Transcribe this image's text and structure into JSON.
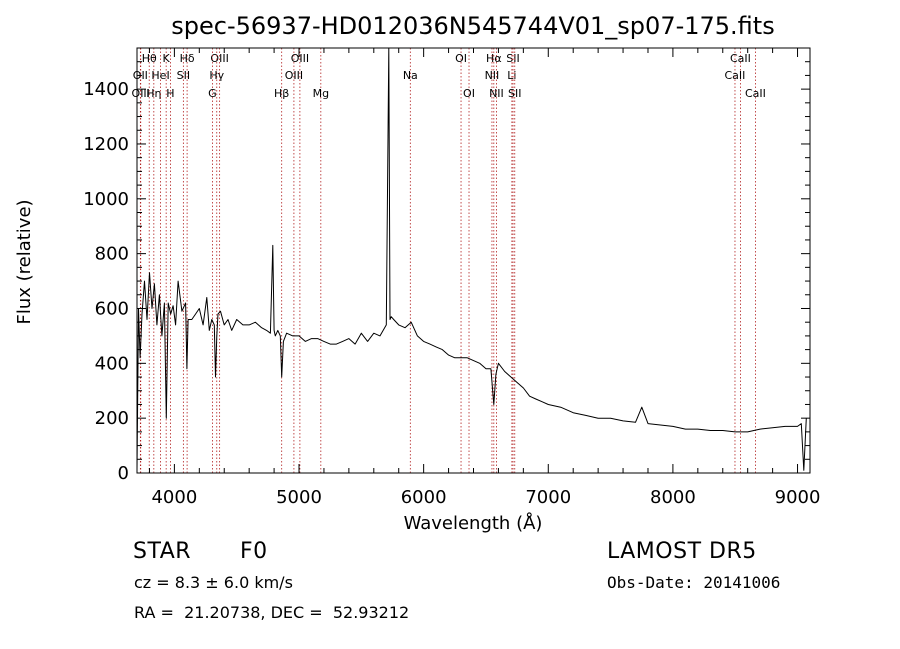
{
  "chart_data": {
    "type": "line",
    "title": "spec-56937-HD012036N545744V01_sp07-175.fits",
    "xlabel": "Wavelength (Å)",
    "ylabel": "Flux (relative)",
    "xlim": [
      3700,
      9100
    ],
    "ylim": [
      0,
      1550
    ],
    "xticks": [
      4000,
      5000,
      6000,
      7000,
      8000,
      9000
    ],
    "yticks": [
      0,
      200,
      400,
      600,
      800,
      1000,
      1200,
      1400
    ],
    "grid": false,
    "series": [
      {
        "x": [
          3700,
          3712,
          3725,
          3740,
          3760,
          3780,
          3800,
          3820,
          3840,
          3860,
          3880,
          3900,
          3920,
          3935,
          3950,
          3970,
          3990,
          4010,
          4030,
          4060,
          4090,
          4100,
          4110,
          4140,
          4170,
          4200,
          4230,
          4260,
          4280,
          4300,
          4320,
          4330,
          4340,
          4350,
          4370,
          4400,
          4430,
          4460,
          4500,
          4550,
          4600,
          4650,
          4700,
          4740,
          4770,
          4790,
          4800,
          4810,
          4830,
          4850,
          4861,
          4875,
          4900,
          4950,
          5000,
          5050,
          5100,
          5150,
          5200,
          5250,
          5300,
          5350,
          5400,
          5450,
          5500,
          5550,
          5600,
          5650,
          5700,
          5720,
          5730,
          5740,
          5760,
          5800,
          5850,
          5900,
          5950,
          6000,
          6050,
          6100,
          6150,
          6200,
          6250,
          6300,
          6350,
          6400,
          6450,
          6500,
          6540,
          6563,
          6580,
          6600,
          6650,
          6700,
          6750,
          6800,
          6850,
          6900,
          6950,
          7000,
          7100,
          7200,
          7300,
          7400,
          7500,
          7600,
          7700,
          7750,
          7800,
          7900,
          8000,
          8100,
          8200,
          8300,
          8400,
          8500,
          8600,
          8700,
          8800,
          8900,
          9000,
          9030,
          9050,
          9070
        ],
        "y": [
          10,
          600,
          420,
          580,
          700,
          560,
          730,
          600,
          690,
          540,
          650,
          500,
          620,
          200,
          620,
          580,
          610,
          540,
          700,
          590,
          620,
          380,
          560,
          560,
          580,
          600,
          540,
          640,
          520,
          560,
          540,
          350,
          500,
          580,
          590,
          540,
          560,
          520,
          560,
          540,
          540,
          550,
          530,
          520,
          510,
          830,
          520,
          500,
          520,
          500,
          350,
          480,
          510,
          500,
          500,
          480,
          490,
          490,
          480,
          470,
          470,
          480,
          490,
          470,
          510,
          480,
          510,
          500,
          540,
          1550,
          560,
          570,
          560,
          540,
          530,
          550,
          500,
          480,
          470,
          460,
          450,
          430,
          420,
          420,
          420,
          410,
          400,
          380,
          380,
          250,
          360,
          400,
          370,
          350,
          330,
          310,
          280,
          270,
          260,
          250,
          240,
          220,
          210,
          200,
          200,
          190,
          185,
          240,
          180,
          175,
          170,
          160,
          160,
          155,
          155,
          150,
          150,
          160,
          165,
          170,
          170,
          180,
          10,
          200
        ]
      }
    ],
    "line_markers": [
      {
        "name": "Hθ",
        "wavelength": 3798,
        "row": 0
      },
      {
        "name": "OII",
        "wavelength": 3727,
        "row": 1
      },
      {
        "name": "OIII",
        "wavelength": 3730,
        "row": 2
      },
      {
        "name": "Hη",
        "wavelength": 3835,
        "row": 2
      },
      {
        "name": "K",
        "wavelength": 3934,
        "row": 0
      },
      {
        "name": "HeI",
        "wavelength": 3889,
        "row": 1
      },
      {
        "name": "H",
        "wavelength": 3968,
        "row": 2
      },
      {
        "name": "Hδ",
        "wavelength": 4102,
        "row": 0
      },
      {
        "name": "SII",
        "wavelength": 4072,
        "row": 1
      },
      {
        "name": "OIII",
        "wavelength": 4363,
        "row": 0
      },
      {
        "name": "Hγ",
        "wavelength": 4340,
        "row": 1
      },
      {
        "name": "G",
        "wavelength": 4305,
        "row": 2
      },
      {
        "name": "OIII",
        "wavelength": 5007,
        "row": 0
      },
      {
        "name": "OIII",
        "wavelength": 4959,
        "row": 1
      },
      {
        "name": "Hβ",
        "wavelength": 4861,
        "row": 2
      },
      {
        "name": "Mg",
        "wavelength": 5175,
        "row": 2
      },
      {
        "name": "Na",
        "wavelength": 5893,
        "row": 1
      },
      {
        "name": "OI",
        "wavelength": 6300,
        "row": 0
      },
      {
        "name": "OI",
        "wavelength": 6364,
        "row": 2
      },
      {
        "name": "Hα",
        "wavelength": 6563,
        "row": 0
      },
      {
        "name": "NII",
        "wavelength": 6548,
        "row": 1
      },
      {
        "name": "NII",
        "wavelength": 6584,
        "row": 2
      },
      {
        "name": "SII",
        "wavelength": 6717,
        "row": 0
      },
      {
        "name": "Li",
        "wavelength": 6708,
        "row": 1
      },
      {
        "name": "SII",
        "wavelength": 6731,
        "row": 2
      },
      {
        "name": "CaII",
        "wavelength": 8542,
        "row": 0
      },
      {
        "name": "CaII",
        "wavelength": 8498,
        "row": 1
      },
      {
        "name": "CaII",
        "wavelength": 8662,
        "row": 2
      }
    ]
  },
  "info": {
    "object_class": "STAR",
    "subclass": "F0",
    "survey": "LAMOST DR5",
    "redshift": "cz = 8.3 ± 6.0 km/s",
    "obs_date": "Obs-Date: 20141006",
    "coordinates": "RA =  21.20738, DEC =  52.93212"
  },
  "colors": {
    "axes": "#000000",
    "spectrum": "#000000",
    "marker_lines": "#b22222",
    "background": "#ffffff"
  }
}
